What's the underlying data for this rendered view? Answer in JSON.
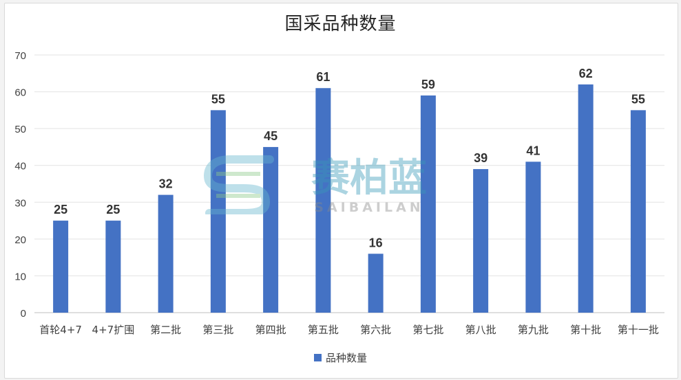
{
  "chart_data": {
    "type": "bar",
    "title": "国采品种数量",
    "categories": [
      "首轮4+7",
      "4+7扩围",
      "第二批",
      "第三批",
      "第四批",
      "第五批",
      "第六批",
      "第七批",
      "第八批",
      "第九批",
      "第十批",
      "第十一批"
    ],
    "series": [
      {
        "name": "品种数量",
        "values": [
          25,
          25,
          32,
          55,
          45,
          61,
          16,
          59,
          39,
          41,
          62,
          55
        ]
      }
    ],
    "ylim": [
      0,
      70
    ],
    "yticks": [
      0,
      10,
      20,
      30,
      40,
      50,
      60,
      70
    ],
    "xlabel": "",
    "ylabel": "",
    "grid": true,
    "legend": "bottom",
    "bar_color": "#4472c4",
    "data_labels": true
  },
  "watermark": {
    "text": "赛柏蓝",
    "subtext": "SAIBAILAN"
  }
}
